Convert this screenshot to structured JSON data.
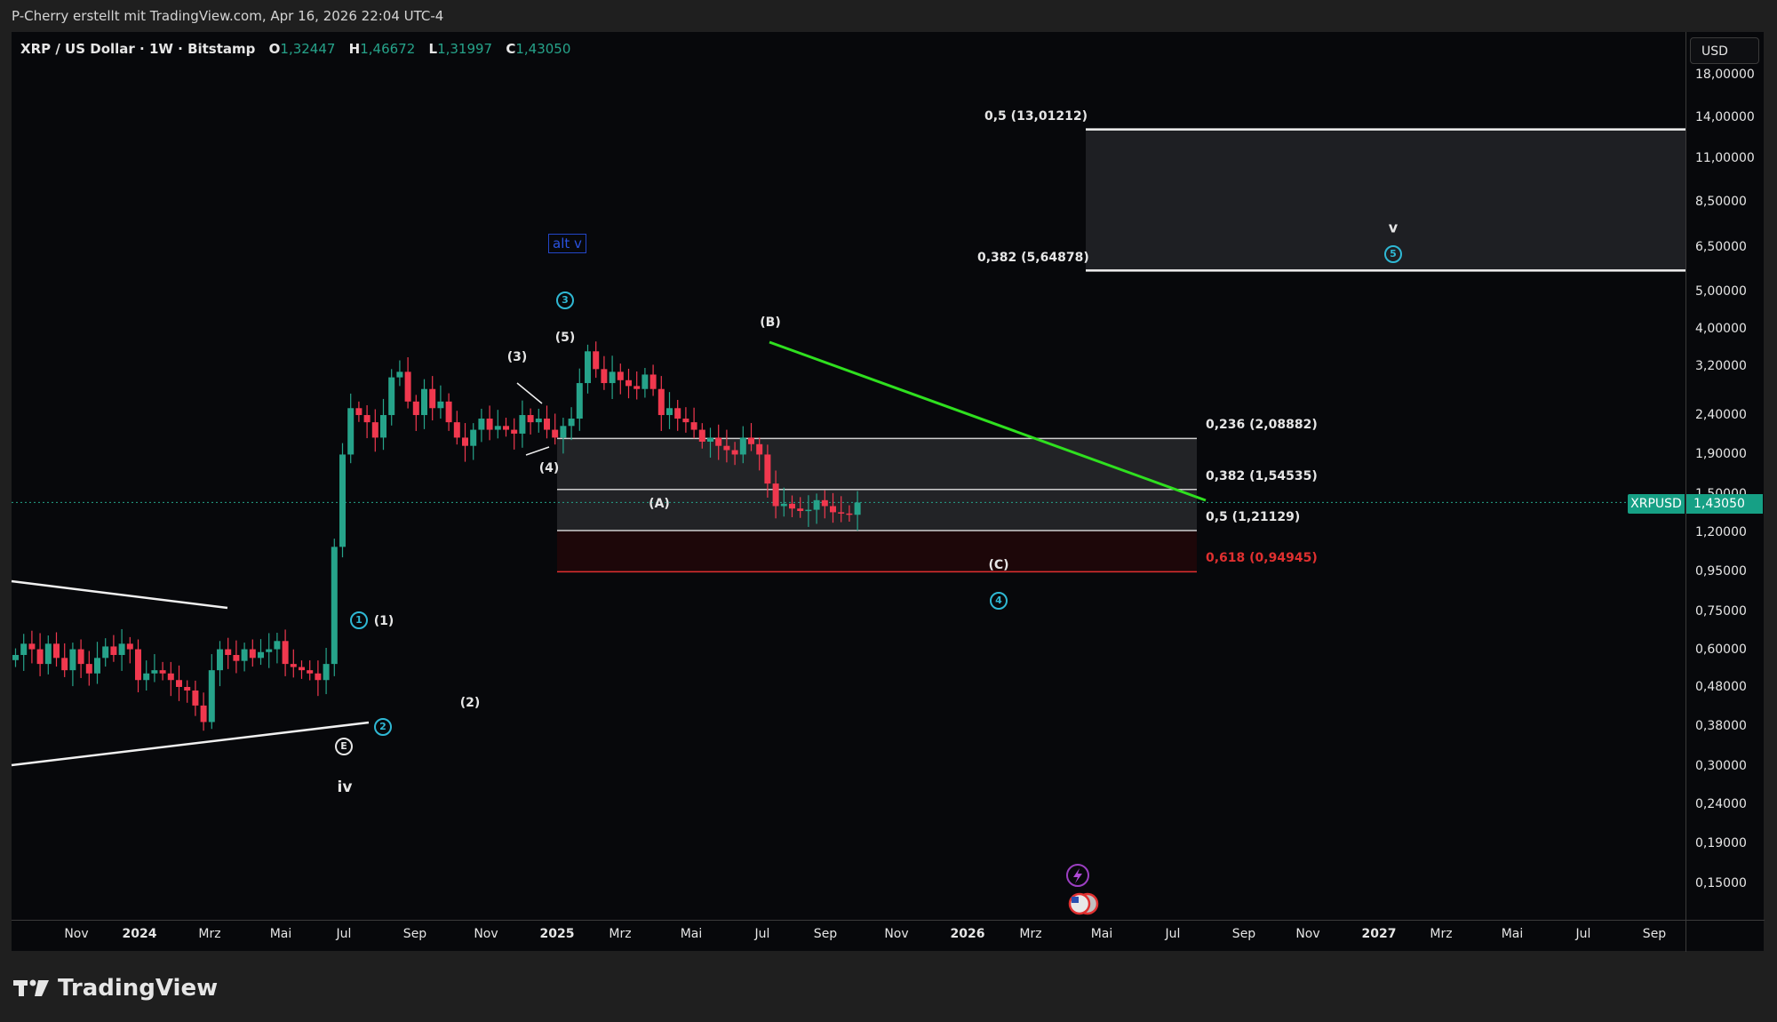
{
  "caption": "P-Cherry erstellt mit TradingView.com, Apr 16, 2026 22:04 UTC-4",
  "legend": {
    "symbol": "XRP / US Dollar · 1W · Bitstamp",
    "open_label": "O",
    "open": "1,32447",
    "high_label": "H",
    "high": "1,46672",
    "low_label": "L",
    "low": "1,31997",
    "close_label": "C",
    "close": "1,43050"
  },
  "price_axis": {
    "currency_button": "USD",
    "ticks": [
      "18,00000",
      "14,00000",
      "11,00000",
      "8,50000",
      "6,50000",
      "5,00000",
      "4,00000",
      "3,20000",
      "2,40000",
      "1,90000",
      "1,50000",
      "1,20000",
      "0,95000",
      "0,75000",
      "0,60000",
      "0,48000",
      "0,38000",
      "0,30000",
      "0,24000",
      "0,19000",
      "0,15000"
    ],
    "current_symbol": "XRPUSD",
    "current_price": "1,43050"
  },
  "time_axis": {
    "labels": [
      "Nov",
      "2024",
      "Mrz",
      "Mai",
      "Jul",
      "Sep",
      "Nov",
      "2025",
      "Mrz",
      "Mai",
      "Jul",
      "Sep",
      "Nov",
      "2026",
      "Mrz",
      "Mai",
      "Jul",
      "Sep",
      "Nov",
      "2027",
      "Mrz",
      "Mai",
      "Jul",
      "Sep"
    ]
  },
  "annotations": {
    "alt_v": "alt v",
    "wave_labels": [
      "(1)",
      "(2)",
      "(3)",
      "(4)",
      "(5)",
      "(A)",
      "(B)",
      "(C)",
      "iv",
      "v"
    ],
    "circled": [
      "1",
      "2",
      "3",
      "4",
      "5",
      "E"
    ]
  },
  "fib_levels": {
    "upper": [
      {
        "label": "0,5 (13,01212)",
        "price": 13.01212
      },
      {
        "label": "0,382 (5,64878)",
        "price": 5.64878
      }
    ],
    "lower": [
      {
        "label": "0,236 (2,08882)",
        "price": 2.08882
      },
      {
        "label": "0,382 (1,54535)",
        "price": 1.54535
      },
      {
        "label": "0,5 (1,21129)",
        "price": 1.21129
      },
      {
        "label": "0,618 (0,94945)",
        "price": 0.94945,
        "color": "#e03030"
      }
    ]
  },
  "colors": {
    "up": "#26a38a",
    "down": "#f0384e",
    "trendline": "#2fe01f",
    "wave_circle": "#2fb8d4",
    "alt_box": "#2346c8",
    "fib_red": "#e03030"
  },
  "logo": "TradingView",
  "chart_data": {
    "type": "candlestick",
    "title": "XRP / US Dollar · 1W · Bitstamp",
    "xlabel": "",
    "ylabel": "USD (log scale)",
    "ylim": [
      0.15,
      18
    ],
    "x_ticks": [
      "Nov",
      "2024",
      "Mrz",
      "Mai",
      "Jul",
      "Sep",
      "Nov",
      "2025",
      "Mrz",
      "Mai",
      "Jul",
      "Sep",
      "Nov",
      "2026",
      "Mrz",
      "Mai",
      "Jul",
      "Sep",
      "Nov",
      "2027",
      "Mrz",
      "Mai",
      "Jul",
      "Sep"
    ],
    "last_ohlc": {
      "open": 1.32447,
      "high": 1.46672,
      "low": 1.31997,
      "close": 1.4305
    },
    "fib_levels": {
      "0.5_upper": 13.01212,
      "0.382_upper": 5.64878,
      "0.236": 2.08882,
      "0.382": 1.54535,
      "0.5": 1.21129,
      "0.618": 0.94945
    },
    "wave_points": [
      {
        "label": "E / iv",
        "date": "2024-07",
        "price": 0.38
      },
      {
        "label": "(1) ①",
        "date": "2024-07",
        "price": 0.66
      },
      {
        "label": "(2)",
        "date": "2024-10",
        "price": 0.49
      },
      {
        "label": "(3)",
        "date": "2024-12",
        "price": 2.9
      },
      {
        "label": "(4)",
        "date": "2024-12",
        "price": 1.9
      },
      {
        "label": "(5) ③",
        "date": "2025-01",
        "price": 3.4
      },
      {
        "label": "(A)",
        "date": "2025-04",
        "price": 1.6
      },
      {
        "label": "(B)",
        "date": "2025-07",
        "price": 3.65
      },
      {
        "label": "(C) ④",
        "date": "2026-02",
        "price": 1.12
      },
      {
        "label": "v ⑤",
        "date": "2026-09",
        "price": 6.5
      }
    ],
    "weekly_close_approx": [
      0.58,
      0.62,
      0.6,
      0.55,
      0.62,
      0.57,
      0.53,
      0.6,
      0.55,
      0.52,
      0.57,
      0.61,
      0.58,
      0.62,
      0.6,
      0.5,
      0.52,
      0.53,
      0.52,
      0.5,
      0.48,
      0.47,
      0.43,
      0.39,
      0.53,
      0.6,
      0.58,
      0.56,
      0.6,
      0.57,
      0.59,
      0.6,
      0.63,
      0.55,
      0.54,
      0.53,
      0.52,
      0.5,
      0.55,
      1.1,
      1.9,
      2.5,
      2.4,
      2.3,
      2.1,
      2.4,
      3.0,
      3.1,
      2.6,
      2.4,
      2.8,
      2.5,
      2.6,
      2.3,
      2.1,
      2.0,
      2.2,
      2.35,
      2.2,
      2.25,
      2.2,
      2.15,
      2.4,
      2.3,
      2.35,
      2.2,
      2.1,
      2.25,
      2.35,
      2.9,
      3.5,
      3.15,
      2.9,
      3.1,
      2.95,
      2.85,
      2.8,
      3.05,
      2.8,
      2.4,
      2.5,
      2.35,
      2.3,
      2.2,
      2.05,
      2.1,
      2.0,
      1.95,
      1.9,
      2.1,
      2.02,
      1.9,
      1.6,
      1.4,
      1.42,
      1.38,
      1.36,
      1.37,
      1.45,
      1.4,
      1.35,
      1.34,
      1.33,
      1.43
    ]
  }
}
